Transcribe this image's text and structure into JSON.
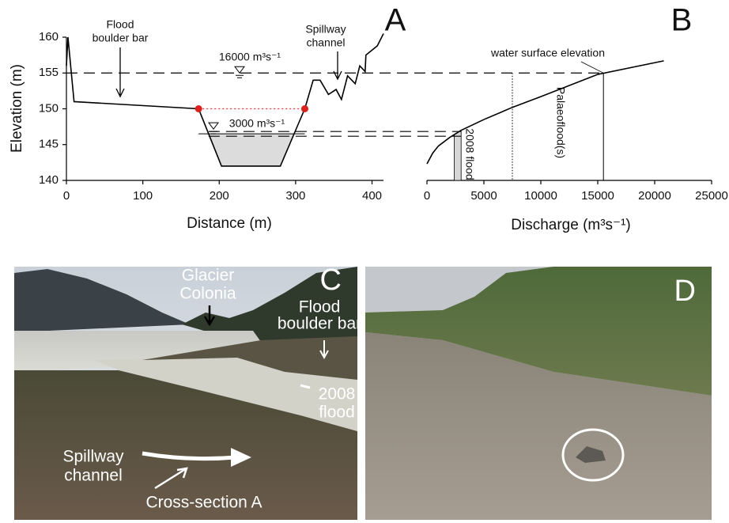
{
  "chart_data": [
    {
      "type": "line",
      "panel": "A",
      "xlabel": "Distance (m)",
      "ylabel": "Elevation (m)",
      "x": [
        0,
        2,
        10,
        173,
        203,
        280,
        312,
        323,
        332,
        343,
        353,
        360,
        368,
        378,
        384,
        391,
        392,
        407,
        415
      ],
      "series": [
        {
          "name": "Cross-section",
          "color": "#000000",
          "values": [
            156,
            160,
            151,
            150,
            142,
            142,
            150,
            154,
            154,
            152,
            152.7,
            151.3,
            154.6,
            153.5,
            156,
            155.2,
            157.5,
            158.8,
            160.5
          ]
        }
      ],
      "xlim": [
        0,
        415
      ],
      "ylim": [
        140,
        160
      ],
      "xticks": [
        0,
        100,
        200,
        300,
        400
      ],
      "yticks": [
        140,
        145,
        150,
        155,
        160
      ],
      "water_levels": [
        {
          "label": "16000 m³s⁻¹",
          "value": 155
        },
        {
          "label": "3000 m³s⁻¹",
          "value": 146.5
        }
      ],
      "bank_points": [
        3,
        6
      ],
      "annotations": [
        [
          "Flood",
          "boulder bar"
        ],
        [
          "Spillway",
          "channel"
        ]
      ]
    },
    {
      "type": "line",
      "panel": "B",
      "xlabel": "Discharge (m³s⁻¹)",
      "x": [
        0,
        500,
        1000,
        2000,
        3000,
        5000,
        7500,
        10000,
        15000,
        20800
      ],
      "series": [
        {
          "name": "Rating curve",
          "color": "#000000",
          "values": [
            142.3,
            143.8,
            144.8,
            146,
            147,
            148.5,
            150.2,
            151.7,
            154.8,
            156.7
          ]
        }
      ],
      "xlim": [
        0,
        25000
      ],
      "ylim": [
        140,
        160
      ],
      "xticks": [
        0,
        5000,
        10000,
        15000,
        20000,
        25000
      ],
      "flood_2008": {
        "label": "2008 flood",
        "xrange": [
          2400,
          3000
        ]
      },
      "palaeoflood": {
        "label": "Palaeoflood(s)",
        "x": 7500
      },
      "water_surface": {
        "label": "water surface elevation",
        "x": 15500
      }
    }
  ],
  "photos": [
    {
      "label": "C",
      "annotations": [
        [
          "Glacier",
          "Colonia"
        ],
        [
          "Flood",
          "boulder bar"
        ],
        [
          "2008",
          "flood"
        ],
        [
          "Spillway",
          "channel"
        ],
        [
          "Cross-section A"
        ]
      ]
    },
    {
      "label": "D"
    }
  ]
}
